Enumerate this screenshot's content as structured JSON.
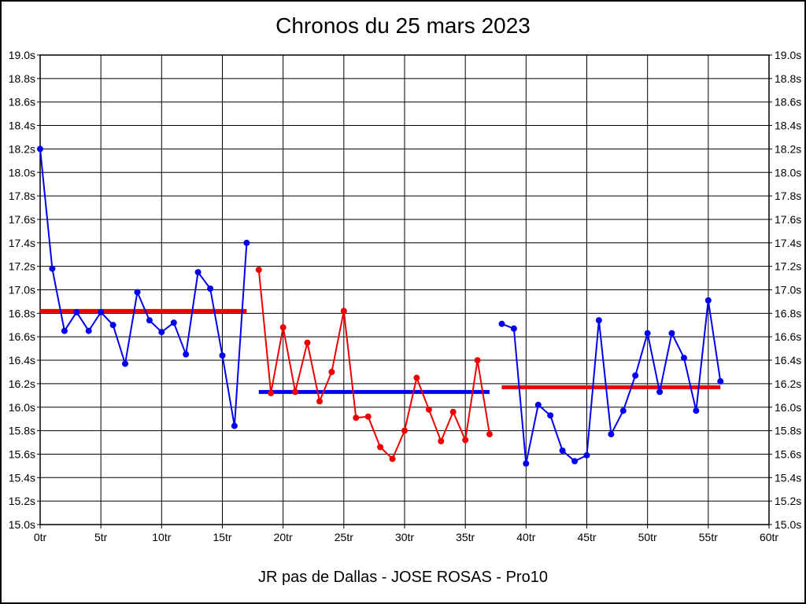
{
  "title": "Chronos du 25 mars 2023",
  "footer": "JR pas de Dallas - JOSE ROSAS - Pro10",
  "colors": {
    "blue": "#0000EE",
    "red": "#EE0000",
    "grid": "#000000",
    "background": "#FFFFFF",
    "text": "#000000"
  },
  "chart_data": {
    "type": "line",
    "title": "Chronos du 25 mars 2023",
    "subtitle": "JR pas de Dallas - JOSE ROSAS - Pro10",
    "x_unit": "tr",
    "y_unit": "s",
    "xlim": [
      0,
      60
    ],
    "ylim": [
      15.0,
      19.0
    ],
    "grid": true,
    "legend": "none",
    "x_tick_labels": [
      "0tr",
      "5tr",
      "10tr",
      "15tr",
      "20tr",
      "25tr",
      "30tr",
      "35tr",
      "40tr",
      "45tr",
      "50tr",
      "55tr",
      "60tr"
    ],
    "y_tick_labels": [
      "19.0s",
      "18.8s",
      "18.6s",
      "18.4s",
      "18.2s",
      "18.0s",
      "17.8s",
      "17.6s",
      "17.4s",
      "17.2s",
      "17.0s",
      "16.8s",
      "16.6s",
      "16.4s",
      "16.2s",
      "16.0s",
      "15.8s",
      "15.6s",
      "15.4s",
      "15.2s",
      "15.0s"
    ],
    "series": [
      {
        "name": "session-1",
        "color_key": "blue",
        "start_lap": 0,
        "values": [
          18.2,
          17.18,
          16.65,
          16.81,
          16.65,
          16.81,
          16.7,
          16.37,
          16.98,
          16.74,
          16.64,
          16.72,
          16.45,
          17.15,
          17.01,
          16.44,
          15.84,
          17.4
        ]
      },
      {
        "name": "session-2",
        "color_key": "red",
        "start_lap": 18,
        "values": [
          17.17,
          16.12,
          16.68,
          16.13,
          16.55,
          16.05,
          16.3,
          16.82,
          15.91,
          15.92,
          15.66,
          15.56,
          15.8,
          16.25,
          15.98,
          15.71,
          15.96,
          15.72,
          16.4,
          15.77
        ]
      },
      {
        "name": "session-3",
        "color_key": "blue",
        "start_lap": 38,
        "values": [
          16.71,
          16.67,
          15.52,
          16.02,
          15.93,
          15.63,
          15.54,
          15.59,
          16.74,
          15.77,
          15.97,
          16.27,
          16.63,
          16.13,
          16.63,
          16.42,
          15.97,
          16.91,
          16.22
        ]
      }
    ],
    "average_lines": [
      {
        "name": "avg-session-1",
        "color_key": "red",
        "x_start": 0,
        "x_end": 17,
        "value": 16.82
      },
      {
        "name": "avg-session-2",
        "color_key": "blue",
        "x_start": 18,
        "x_end": 37,
        "value": 16.13
      },
      {
        "name": "avg-session-3",
        "color_key": "red",
        "x_start": 38,
        "x_end": 56,
        "value": 16.17
      }
    ]
  }
}
